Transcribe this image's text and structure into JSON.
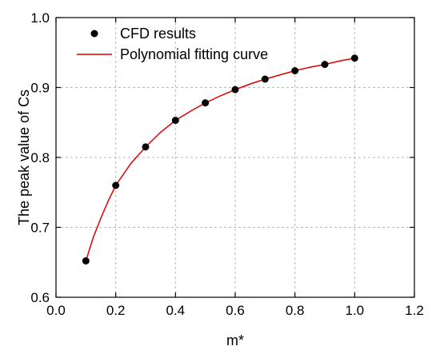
{
  "chart_data": {
    "type": "scatter",
    "xlabel": "m*",
    "ylabel": "The peak value of Cs",
    "xlim": [
      0.0,
      1.2
    ],
    "ylim": [
      0.6,
      1.0
    ],
    "xticks": [
      "0.0",
      "0.2",
      "0.4",
      "0.6",
      "0.8",
      "1.0",
      "1.2"
    ],
    "yticks": [
      "0.6",
      "0.7",
      "0.8",
      "0.9",
      "1.0"
    ],
    "grid": true,
    "legend_position": "top-left",
    "series": [
      {
        "name": "CFD results",
        "kind": "scatter",
        "color": "#000000",
        "x": [
          0.1,
          0.2,
          0.3,
          0.4,
          0.5,
          0.6,
          0.7,
          0.8,
          0.9,
          1.0
        ],
        "y": [
          0.652,
          0.76,
          0.815,
          0.853,
          0.878,
          0.897,
          0.912,
          0.924,
          0.933,
          0.942
        ]
      },
      {
        "name": "Polynomial fitting curve",
        "kind": "line",
        "color": "#e00000",
        "x": [
          0.1,
          0.125,
          0.15,
          0.175,
          0.2,
          0.25,
          0.3,
          0.35,
          0.4,
          0.45,
          0.5,
          0.55,
          0.6,
          0.65,
          0.7,
          0.75,
          0.8,
          0.85,
          0.9,
          0.95,
          1.0
        ],
        "y": [
          0.652,
          0.686,
          0.713,
          0.738,
          0.76,
          0.791,
          0.815,
          0.836,
          0.853,
          0.866,
          0.878,
          0.888,
          0.897,
          0.905,
          0.912,
          0.918,
          0.924,
          0.929,
          0.933,
          0.938,
          0.942
        ]
      }
    ]
  }
}
